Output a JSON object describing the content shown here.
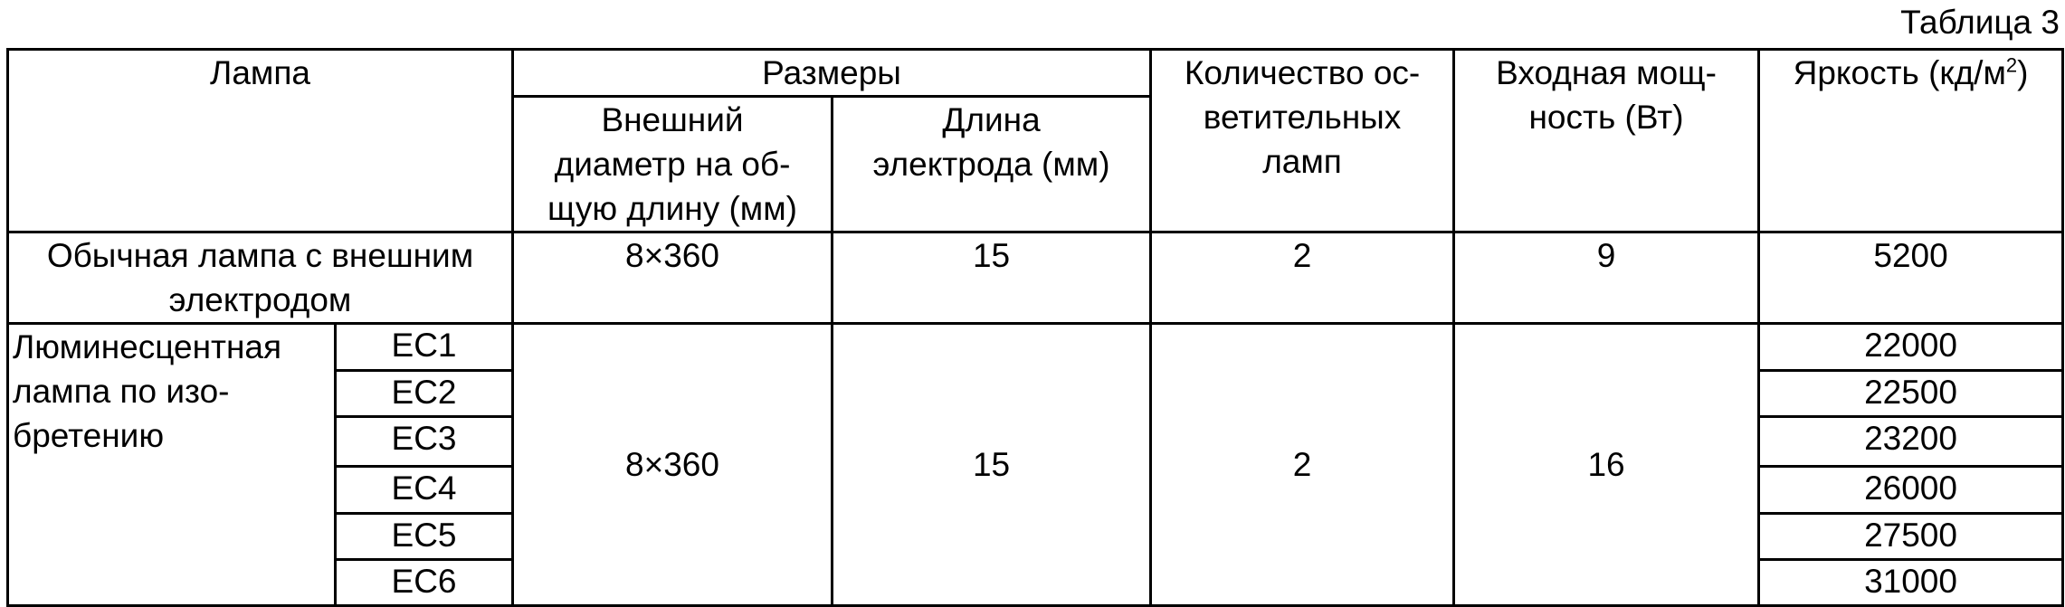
{
  "caption": "Таблица 3",
  "header": {
    "lamp": "Лампа",
    "dimensions": "Размеры",
    "outer_diameter": "Внешний\nдиаметр на об-\nщую длину (мм)",
    "electrode_length": "Длина\nэлектрода (мм)",
    "lamp_count": "Количество ос-\nветительных\nламп",
    "input_power": "Входная мощ-\nность (Вт)",
    "brightness": "Яркость (кд/м",
    "brightness_sup": "2",
    "brightness_end": ")"
  },
  "conventional": {
    "name": "Обычная лампа с внешним\nэлектродом",
    "size": "8×360",
    "electrode_length": "15",
    "lamp_count": "2",
    "power": "9",
    "brightness": "5200"
  },
  "invention": {
    "name": "Люминесцентная\nлампа по изо-\nбретению",
    "size": "8×360",
    "electrode_length": "15",
    "lamp_count": "2",
    "power": "16",
    "rows": [
      {
        "id": "EC1",
        "brightness": "22000"
      },
      {
        "id": "EC2",
        "brightness": "22500"
      },
      {
        "id": "EC3",
        "brightness": "23200"
      },
      {
        "id": "EC4",
        "brightness": "26000"
      },
      {
        "id": "EC5",
        "brightness": "27500"
      },
      {
        "id": "EC6",
        "brightness": "31000"
      }
    ]
  }
}
